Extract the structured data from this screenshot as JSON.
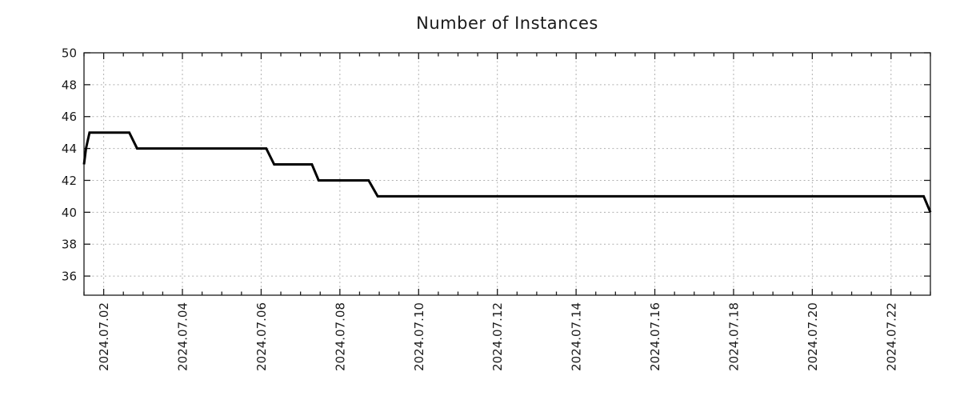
{
  "figure": {
    "background": "#ffffff"
  },
  "chart_data": {
    "type": "line",
    "style": "step-monitoring-graph",
    "title": "Number of Instances",
    "line_color": "#000000",
    "line_width": 3,
    "grid_color": "#b0b0b0",
    "axis_color": "#1a1a1a",
    "text_color": "#1a1a1a",
    "legend": "none",
    "grid": "dotted",
    "x_axis": {
      "label": "",
      "tick_labels": [
        "2024.07.02",
        "2024.07.04",
        "2024.07.06",
        "2024.07.08",
        "2024.07.10",
        "2024.07.12",
        "2024.07.14",
        "2024.07.16",
        "2024.07.18",
        "2024.07.20",
        "2024.07.22"
      ],
      "tick_offsets_days": [
        1,
        3,
        5,
        7,
        9,
        11,
        13,
        15,
        17,
        19,
        21
      ],
      "minor_tick_step_days": 0.5,
      "range_offset_days": [
        0.5,
        22.0
      ],
      "range_dates": [
        "2024-07-01 12:00",
        "2024-07-23 00:00"
      ],
      "label_rotation_deg": -90
    },
    "y_axis": {
      "label": "",
      "ticks": [
        36,
        38,
        40,
        42,
        44,
        46,
        48,
        50
      ],
      "range": [
        34.8,
        50
      ]
    },
    "series": [
      {
        "name": "instances",
        "points": [
          {
            "time": "2024-07-01 12:00",
            "offset_days": 0.5,
            "value": 43
          },
          {
            "time": "2024-07-01 13:15",
            "offset_days": 0.55,
            "value": 44
          },
          {
            "time": "2024-07-01 15:20",
            "offset_days": 0.64,
            "value": 45
          },
          {
            "time": "2024-07-02 15:30",
            "offset_days": 1.65,
            "value": 45
          },
          {
            "time": "2024-07-02 20:30",
            "offset_days": 1.85,
            "value": 44
          },
          {
            "time": "2024-07-06 03:00",
            "offset_days": 5.13,
            "value": 44
          },
          {
            "time": "2024-07-06 08:00",
            "offset_days": 5.33,
            "value": 43
          },
          {
            "time": "2024-07-07 07:00",
            "offset_days": 6.29,
            "value": 43
          },
          {
            "time": "2024-07-07 11:00",
            "offset_days": 6.46,
            "value": 42
          },
          {
            "time": "2024-07-08 17:30",
            "offset_days": 7.73,
            "value": 42
          },
          {
            "time": "2024-07-08 23:00",
            "offset_days": 7.96,
            "value": 41
          },
          {
            "time": "2024-07-22 20:00",
            "offset_days": 21.83,
            "value": 41
          },
          {
            "time": "2024-07-23 00:00",
            "offset_days": 22.0,
            "value": 40
          }
        ]
      }
    ]
  }
}
